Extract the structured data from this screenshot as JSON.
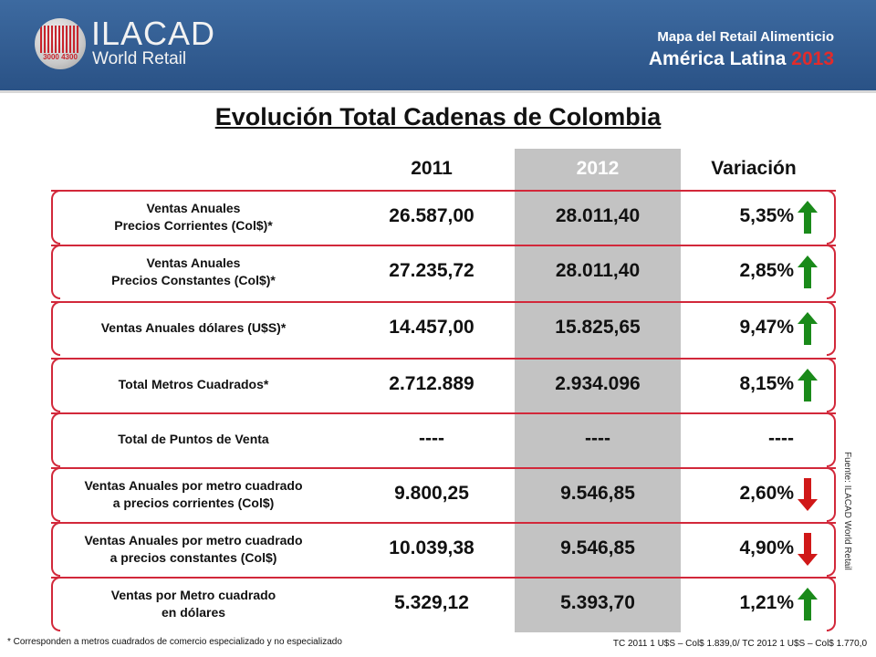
{
  "header": {
    "logo_title": "ILACAD",
    "logo_subtitle": "World Retail",
    "logo_numbers": "3000 4300",
    "line1": "Mapa del Retail Alimenticio",
    "line2_prefix": "América Latina ",
    "line2_year": "2013"
  },
  "title": "Evolución Total Cadenas de Colombia",
  "columns": {
    "c2011": "2011",
    "c2012": "2012",
    "variation": "Variación"
  },
  "rows": [
    {
      "label": "Ventas Anuales\nPrecios Corrientes  (Col$)*",
      "v2011": "26.587,00",
      "v2012": "28.011,40",
      "variation": "5,35%",
      "trend": "up"
    },
    {
      "label": "Ventas Anuales\nPrecios Constantes  (Col$)*",
      "v2011": "27.235,72",
      "v2012": "28.011,40",
      "variation": "2,85%",
      "trend": "up"
    },
    {
      "label": "Ventas Anuales dólares  (U$S)*",
      "v2011": "14.457,00",
      "v2012": "15.825,65",
      "variation": "9,47%",
      "trend": "up"
    },
    {
      "label": "Total Metros Cuadrados*",
      "v2011": "2.712.889",
      "v2012": "2.934.096",
      "variation": "8,15%",
      "trend": "up"
    },
    {
      "label": "Total de Puntos de Venta",
      "v2011": "----",
      "v2012": "----",
      "variation": "----",
      "trend": "none"
    },
    {
      "label": "Ventas Anuales por metro cuadrado\na precios corrientes (Col$)",
      "v2011": "9.800,25",
      "v2012": "9.546,85",
      "variation": "2,60%",
      "trend": "down"
    },
    {
      "label": "Ventas Anuales por metro cuadrado\na precios constantes (Col$)",
      "v2011": "10.039,38",
      "v2012": "9.546,85",
      "variation": "4,90%",
      "trend": "down"
    },
    {
      "label": "Ventas  por  Metro cuadrado\nen dólares",
      "v2011": "5.329,12",
      "v2012": "5.393,70",
      "variation": "1,21%",
      "trend": "up"
    }
  ],
  "source": "Fuente: ILACAD World Retail",
  "footnote": "* Corresponden a metros cuadrados de comercio especializado y no especializado",
  "fx_note": "TC 2011 1 U$S  – Col$ 1.839,0/ TC 2012 1 U$S – Col$ 1.770,0",
  "colors": {
    "up": "#1a8a1a",
    "down": "#d01818",
    "accent": "#d2283a",
    "header": "#2f5b8f",
    "column_2012": "#c3c3c3"
  }
}
